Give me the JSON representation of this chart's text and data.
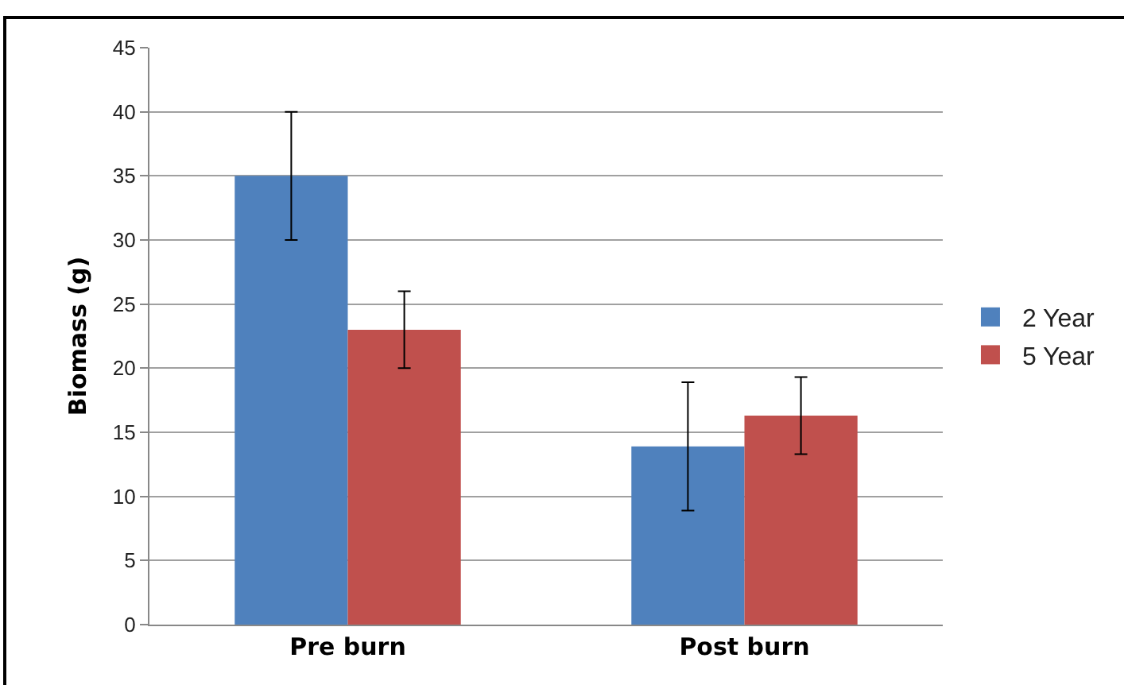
{
  "chart_data": {
    "type": "bar",
    "ylabel": "Biomass (g)",
    "categories": [
      "Pre burn",
      "Post burn"
    ],
    "series": [
      {
        "name": "2 Year",
        "color": "#4f81bd",
        "values": [
          35,
          13.9
        ],
        "errors": [
          5,
          5
        ]
      },
      {
        "name": "5 Year",
        "color": "#c0504d",
        "values": [
          23,
          16.3
        ],
        "errors": [
          3,
          3
        ]
      }
    ],
    "ylim": [
      0,
      45
    ],
    "yticks": [
      0,
      5,
      10,
      15,
      20,
      25,
      30,
      35,
      40,
      45
    ],
    "grid": "y",
    "legend": "right"
  }
}
